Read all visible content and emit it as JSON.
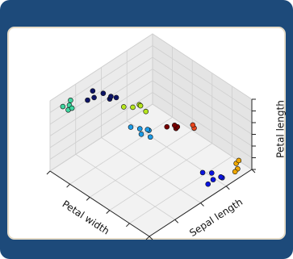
{
  "chart_data": {
    "type": "scatter3d",
    "xlabel": "Petal width",
    "ylabel": "Sepal length",
    "zlabel": "Petal length",
    "xlim": [
      0,
      2.5
    ],
    "ylim": [
      4,
      8
    ],
    "zlim": [
      1,
      7
    ],
    "xticks": [
      0,
      0.5,
      1,
      1.5,
      2,
      2.5
    ],
    "yticks": [
      4,
      5,
      6,
      7,
      8
    ],
    "zticks": [
      1,
      2,
      3,
      4,
      5,
      6,
      7
    ],
    "grid": true,
    "series": [
      {
        "color": "#3fd6a0",
        "x": [
          2.4,
          2.5,
          2.3,
          2.4,
          2.5
        ],
        "y": [
          4.6,
          4.5,
          4.4,
          4.7,
          4.8
        ],
        "z": [
          6.0,
          5.8,
          6.1,
          5.6,
          5.9
        ]
      },
      {
        "color": "#0d1466",
        "x": [
          2.1,
          2.0,
          2.2,
          1.9,
          2.0,
          2.2,
          1.8
        ],
        "y": [
          5.1,
          5.3,
          5.0,
          5.4,
          5.6,
          5.2,
          5.5
        ],
        "z": [
          6.6,
          6.9,
          6.3,
          6.5,
          6.2,
          6.8,
          6.7
        ]
      },
      {
        "color": "#b6e61e",
        "x": [
          1.9,
          1.8,
          2.0,
          1.7,
          1.9
        ],
        "y": [
          6.3,
          6.4,
          6.1,
          6.5,
          6.6
        ],
        "z": [
          4.5,
          4.8,
          4.6,
          4.3,
          4.2
        ]
      },
      {
        "color": "#1c9be6",
        "x": [
          1.4,
          1.3,
          1.5,
          1.2,
          1.4,
          1.3
        ],
        "y": [
          5.8,
          6.0,
          5.6,
          5.9,
          6.1,
          5.7
        ],
        "z": [
          4.5,
          4.3,
          4.7,
          4.1,
          4.0,
          4.4
        ]
      },
      {
        "color": "#7a0000",
        "x": [
          1.3,
          1.2,
          1.1,
          1.3
        ],
        "y": [
          6.7,
          6.9,
          6.8,
          7.0
        ],
        "z": [
          3.6,
          3.4,
          3.9,
          3.3
        ]
      },
      {
        "color": "#e8451c",
        "x": [
          1.0,
          1.1
        ],
        "y": [
          7.3,
          7.4
        ],
        "z": [
          3.3,
          3.2
        ]
      },
      {
        "color": "#0a14e0",
        "x": [
          0.2,
          0.3,
          0.2,
          0.1,
          0.4,
          0.2
        ],
        "y": [
          6.8,
          6.9,
          6.6,
          7.0,
          6.7,
          7.1
        ],
        "z": [
          1.4,
          1.6,
          1.3,
          1.5,
          1.7,
          1.2
        ]
      },
      {
        "color": "#f0a800",
        "x": [
          0.1,
          0.2,
          0.1,
          0.2
        ],
        "y": [
          7.6,
          7.7,
          7.5,
          7.8
        ],
        "z": [
          1.4,
          1.5,
          1.3,
          1.6
        ]
      }
    ]
  }
}
